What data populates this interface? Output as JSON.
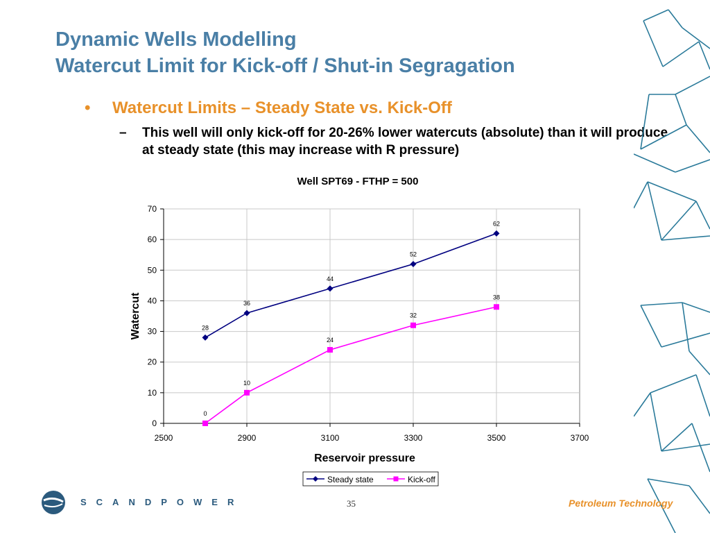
{
  "slide": {
    "title_line1": "Dynamic Wells Modelling",
    "title_line2": "Watercut Limit for Kick-off / Shut-in Segragation",
    "bullet_marker": "•",
    "bullet": "Watercut Limits – Steady State vs. Kick-Off",
    "sub_marker": "–",
    "sub_bullet": "This well will only kick-off for 20-26% lower watercuts (absolute) than it will produce at steady state (this may increase with R pressure)",
    "page_number": "35"
  },
  "footer": {
    "brand": "SCANDPOWER",
    "tagline": "Petroleum Technology"
  },
  "colors": {
    "title": "#4a7fa6",
    "bullet": "#e8912a",
    "steady": "#000080",
    "kickoff": "#ff00ff",
    "decoration": "#2a7a9a"
  },
  "chart_data": {
    "type": "line",
    "title": "Well SPT69 - FTHP = 500",
    "xlabel": "Reservoir pressure",
    "ylabel": "Watercut",
    "xlim": [
      2500,
      3700
    ],
    "ylim": [
      0,
      70
    ],
    "x_ticks": [
      2500,
      2900,
      3100,
      3300,
      3500,
      3700
    ],
    "y_ticks": [
      0,
      10,
      20,
      30,
      40,
      50,
      60,
      70
    ],
    "grid": true,
    "legend_position": "bottom",
    "series": [
      {
        "name": "Steady state",
        "marker": "diamond",
        "color": "#000080",
        "points": [
          {
            "x": 2700,
            "y": 28
          },
          {
            "x": 2900,
            "y": 36
          },
          {
            "x": 3100,
            "y": 44
          },
          {
            "x": 3300,
            "y": 52
          },
          {
            "x": 3500,
            "y": 62
          }
        ]
      },
      {
        "name": "Kick-off",
        "marker": "square",
        "color": "#ff00ff",
        "points": [
          {
            "x": 2700,
            "y": 0
          },
          {
            "x": 2900,
            "y": 10
          },
          {
            "x": 3100,
            "y": 24
          },
          {
            "x": 3300,
            "y": 32
          },
          {
            "x": 3500,
            "y": 38
          }
        ]
      }
    ]
  }
}
